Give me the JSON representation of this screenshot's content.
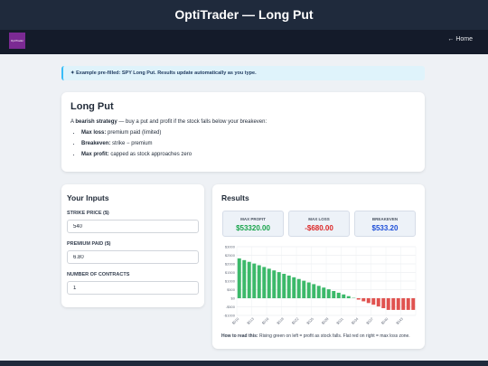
{
  "header": {
    "title": "OptiTrader — Long Put",
    "logo": "OptiTrader",
    "home_link": "← Home"
  },
  "alert": "✦ Example pre-filled: SPY Long Put. Results update automatically as you type.",
  "intro": {
    "title": "Long Put",
    "text_start": "A",
    "text_bold": "bearish strategy",
    "text_end": "— buy a put and profit if the stock falls below your breakeven:",
    "items": [
      {
        "label": "Max loss:",
        "text": "premium paid (limited)"
      },
      {
        "label": "Breakeven:",
        "text": "strike − premium"
      },
      {
        "label": "Max profit:",
        "text": "capped as stock approaches zero"
      }
    ]
  },
  "inputs": {
    "title": "Your Inputs",
    "fields": [
      {
        "label": "STRIKE PRICE ($)",
        "value": "540"
      },
      {
        "label": "PREMIUM PAID ($)",
        "value": "6.80"
      },
      {
        "label": "NUMBER OF CONTRACTS",
        "value": "1"
      }
    ]
  },
  "results": {
    "title": "Results",
    "stats": [
      {
        "label": "MAX PROFIT",
        "value": "$53320.00"
      },
      {
        "label": "MAX LOSS",
        "value": "-$680.00"
      },
      {
        "label": "BREAKEVEN",
        "value": "$533.20"
      }
    ],
    "note_bold": "How to read this:",
    "note": "Rising green on left = profit as stock falls. Flat red on right = max loss zone."
  },
  "chart_data": {
    "type": "bar",
    "categories": [
      "$510",
      null,
      null,
      "$513",
      null,
      null,
      "$516",
      null,
      null,
      "$519",
      null,
      null,
      "$522",
      null,
      null,
      "$525",
      null,
      null,
      "$528",
      null,
      null,
      "$531",
      null,
      null,
      "$534",
      null,
      null,
      "$537",
      null,
      null,
      "$540",
      null,
      null,
      "$543",
      null,
      null
    ],
    "values": [
      2320,
      2220,
      2120,
      2020,
      1920,
      1820,
      1720,
      1620,
      1520,
      1420,
      1320,
      1220,
      1120,
      1020,
      920,
      820,
      720,
      620,
      520,
      420,
      320,
      220,
      120,
      20,
      -80,
      -180,
      -280,
      -380,
      -480,
      -580,
      -680,
      -680,
      -680,
      -680,
      -680,
      -680
    ],
    "color_positive": "#3cb96a",
    "color_negative": "#e0524f",
    "ylim": [
      -1000,
      3000
    ],
    "yticks": [
      {
        "value": -1000,
        "label": "-$1000"
      },
      {
        "value": -500,
        "label": "-$500"
      },
      {
        "value": 0,
        "label": "$0"
      },
      {
        "value": 500,
        "label": "$500"
      },
      {
        "value": 1000,
        "label": "$1000"
      },
      {
        "value": 1500,
        "label": "$1500"
      },
      {
        "value": 2000,
        "label": "$2000"
      },
      {
        "value": 2500,
        "label": "$2500"
      },
      {
        "value": 3000,
        "label": "$3000"
      }
    ],
    "grid": true
  }
}
